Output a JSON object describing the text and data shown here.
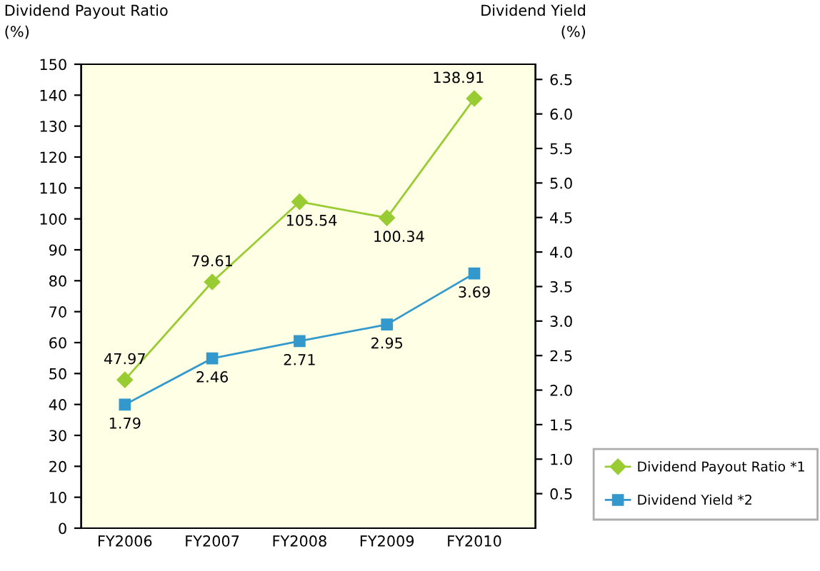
{
  "chart_data": {
    "type": "line",
    "ylabel": "Dividend Payout Ratio\n(%)",
    "y2label": "Dividend Yield\n(%)",
    "categories": [
      "FY2006",
      "FY2007",
      "FY2008",
      "FY2009",
      "FY2010"
    ],
    "series": [
      {
        "name": "Dividend Payout Ratio *1",
        "color": "#99cc33",
        "marker": "diamond",
        "values": [
          47.97,
          79.61,
          105.54,
          100.34,
          138.91
        ]
      },
      {
        "name": "Dividend Yield *2",
        "color": "#3399cc",
        "marker": "square",
        "axis": "y2",
        "values": [
          1.79,
          2.46,
          2.71,
          2.95,
          3.69
        ]
      }
    ],
    "ylim": [
      0,
      150
    ],
    "yticks": [
      0,
      10,
      20,
      30,
      40,
      50,
      60,
      70,
      80,
      90,
      100,
      110,
      120,
      130,
      140,
      150
    ],
    "y2lim": [
      0,
      6.72
    ],
    "y2ticks": [
      {
        "value": 0.5,
        "label": "0.5"
      },
      {
        "value": 1,
        "label": "1.0"
      },
      {
        "value": 1.5,
        "label": "1.5"
      },
      {
        "value": 2,
        "label": "2.0"
      },
      {
        "value": 2.5,
        "label": "2.5"
      },
      {
        "value": 3,
        "label": "3.0"
      },
      {
        "value": 3.5,
        "label": "3.5"
      },
      {
        "value": 4,
        "label": "4.0"
      },
      {
        "value": 4.5,
        "label": "4.5"
      },
      {
        "value": 5,
        "label": "5.0"
      },
      {
        "value": 5.5,
        "label": "5.5"
      },
      {
        "value": 6,
        "label": "6.0"
      },
      {
        "value": 6.5,
        "label": "6.5"
      }
    ],
    "data_labels": true,
    "grid": false,
    "legend": "bottom right",
    "line_style": "solid"
  }
}
